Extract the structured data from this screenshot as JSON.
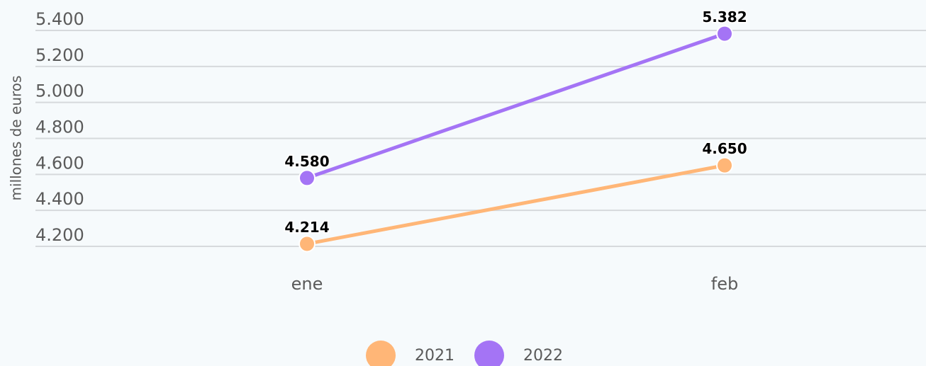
{
  "chart_data": {
    "type": "line",
    "y_label": "millones de euros",
    "categories": [
      "ene",
      "feb"
    ],
    "series": [
      {
        "name": "2021",
        "color": "#ffb677",
        "values": [
          4214,
          4650
        ],
        "value_labels": [
          "4.214",
          "4.650"
        ]
      },
      {
        "name": "2022",
        "color": "#a474f5",
        "values": [
          4580,
          5382
        ],
        "value_labels": [
          "4.580",
          "5.382"
        ]
      }
    ],
    "ylim": [
      4200,
      5400
    ],
    "yticks": [
      {
        "value": 4200,
        "label": "4.200"
      },
      {
        "value": 4400,
        "label": "4.400"
      },
      {
        "value": 4600,
        "label": "4.600"
      },
      {
        "value": 4800,
        "label": "4.800"
      },
      {
        "value": 5000,
        "label": "5.000"
      },
      {
        "value": 5200,
        "label": "5.200"
      },
      {
        "value": 5400,
        "label": "5.400"
      }
    ],
    "grid": true
  }
}
